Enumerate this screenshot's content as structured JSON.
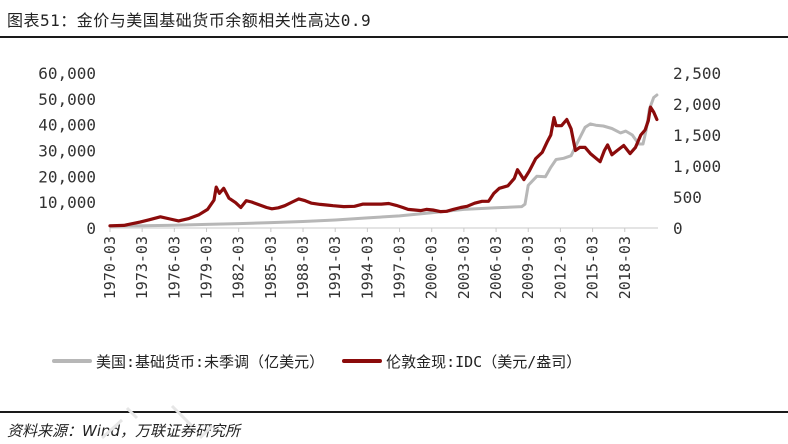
{
  "title": "图表51：金价与美国基础货币余额相关性高达0.9",
  "source": "资料来源：Wind，万联证券研究所",
  "colors": {
    "gray": "#b7b7b7",
    "red": "#8b0b0b",
    "axis": "#c9c9c9",
    "text": "#333333"
  },
  "chart_data": {
    "type": "line",
    "title": "",
    "x_ticks": [
      "1970-03",
      "1973-03",
      "1976-03",
      "1979-03",
      "1982-03",
      "1985-03",
      "1988-03",
      "1991-03",
      "1994-03",
      "1997-03",
      "2000-03",
      "2003-03",
      "2006-03",
      "2009-03",
      "2012-03",
      "2015-03",
      "2018-03"
    ],
    "y_left": {
      "min": 0,
      "max": 60000,
      "ticks": [
        0,
        10000,
        20000,
        30000,
        40000,
        50000,
        60000
      ],
      "tick_labels": [
        "0",
        "10,000",
        "20,000",
        "30,000",
        "40,000",
        "50,000",
        "60,000"
      ]
    },
    "y_right": {
      "min": 0,
      "max": 2500,
      "ticks": [
        0,
        500,
        1000,
        1500,
        2000,
        2500
      ],
      "tick_labels": [
        "0",
        "500",
        "1,000",
        "1,500",
        "2,000",
        "2,500"
      ]
    },
    "grid": false,
    "legend_position": "bottom",
    "series": [
      {
        "name": "美国:基础货币:未季调（亿美元）",
        "axis": "left",
        "color": "#b7b7b7",
        "points": [
          [
            1970.2,
            800
          ],
          [
            1973.2,
            900
          ],
          [
            1976.2,
            1100
          ],
          [
            1979.2,
            1400
          ],
          [
            1982.2,
            1700
          ],
          [
            1985.2,
            2100
          ],
          [
            1988.2,
            2500
          ],
          [
            1991.2,
            3100
          ],
          [
            1994.2,
            3900
          ],
          [
            1997.2,
            4700
          ],
          [
            2000.2,
            5900
          ],
          [
            2003.2,
            7200
          ],
          [
            2006.2,
            7800
          ],
          [
            2008.6,
            8300
          ],
          [
            2008.9,
            9200
          ],
          [
            2009.2,
            16500
          ],
          [
            2010.0,
            20000
          ],
          [
            2010.8,
            19800
          ],
          [
            2011.3,
            23500
          ],
          [
            2011.8,
            26500
          ],
          [
            2012.5,
            27000
          ],
          [
            2013.2,
            28000
          ],
          [
            2013.9,
            34000
          ],
          [
            2014.5,
            39000
          ],
          [
            2015.0,
            40300
          ],
          [
            2015.5,
            39800
          ],
          [
            2016.2,
            39500
          ],
          [
            2017.0,
            38500
          ],
          [
            2017.8,
            36800
          ],
          [
            2018.3,
            37500
          ],
          [
            2018.9,
            36000
          ],
          [
            2019.5,
            32500
          ],
          [
            2019.9,
            32500
          ],
          [
            2020.2,
            38000
          ],
          [
            2020.5,
            46000
          ],
          [
            2020.9,
            50500
          ],
          [
            2021.2,
            51500
          ]
        ]
      },
      {
        "name": "伦敦金现:IDC（美元/盎司）",
        "axis": "right",
        "color": "#8b0b0b",
        "points": [
          [
            1970.2,
            35
          ],
          [
            1971.5,
            42
          ],
          [
            1973.0,
            95
          ],
          [
            1973.8,
            130
          ],
          [
            1974.9,
            180
          ],
          [
            1975.8,
            145
          ],
          [
            1976.6,
            115
          ],
          [
            1977.5,
            150
          ],
          [
            1978.5,
            215
          ],
          [
            1979.3,
            300
          ],
          [
            1979.9,
            450
          ],
          [
            1980.1,
            660
          ],
          [
            1980.4,
            560
          ],
          [
            1980.8,
            640
          ],
          [
            1981.3,
            480
          ],
          [
            1981.9,
            410
          ],
          [
            1982.4,
            330
          ],
          [
            1982.9,
            440
          ],
          [
            1983.4,
            420
          ],
          [
            1984.0,
            380
          ],
          [
            1984.8,
            330
          ],
          [
            1985.3,
            310
          ],
          [
            1985.9,
            325
          ],
          [
            1986.5,
            360
          ],
          [
            1987.2,
            420
          ],
          [
            1987.8,
            470
          ],
          [
            1988.4,
            440
          ],
          [
            1989.0,
            400
          ],
          [
            1989.8,
            380
          ],
          [
            1990.5,
            370
          ],
          [
            1991.0,
            360
          ],
          [
            1992.0,
            345
          ],
          [
            1993.0,
            350
          ],
          [
            1993.8,
            385
          ],
          [
            1994.5,
            385
          ],
          [
            1995.5,
            385
          ],
          [
            1996.2,
            395
          ],
          [
            1996.9,
            365
          ],
          [
            1997.5,
            330
          ],
          [
            1998.0,
            300
          ],
          [
            1998.6,
            290
          ],
          [
            1999.2,
            280
          ],
          [
            1999.7,
            300
          ],
          [
            2000.3,
            290
          ],
          [
            2001.0,
            265
          ],
          [
            2001.6,
            270
          ],
          [
            2002.2,
            300
          ],
          [
            2002.9,
            330
          ],
          [
            2003.5,
            350
          ],
          [
            2004.2,
            400
          ],
          [
            2004.9,
            430
          ],
          [
            2005.5,
            430
          ],
          [
            2006.0,
            560
          ],
          [
            2006.5,
            640
          ],
          [
            2007.3,
            680
          ],
          [
            2007.9,
            800
          ],
          [
            2008.2,
            940
          ],
          [
            2008.8,
            780
          ],
          [
            2009.3,
            920
          ],
          [
            2009.9,
            1120
          ],
          [
            2010.5,
            1220
          ],
          [
            2011.0,
            1400
          ],
          [
            2011.3,
            1500
          ],
          [
            2011.6,
            1780
          ],
          [
            2011.8,
            1650
          ],
          [
            2012.3,
            1650
          ],
          [
            2012.8,
            1750
          ],
          [
            2013.2,
            1600
          ],
          [
            2013.6,
            1250
          ],
          [
            2014.0,
            1300
          ],
          [
            2014.5,
            1300
          ],
          [
            2015.0,
            1200
          ],
          [
            2015.9,
            1070
          ],
          [
            2016.3,
            1250
          ],
          [
            2016.6,
            1340
          ],
          [
            2017.0,
            1180
          ],
          [
            2017.5,
            1250
          ],
          [
            2018.1,
            1330
          ],
          [
            2018.7,
            1200
          ],
          [
            2019.2,
            1300
          ],
          [
            2019.7,
            1500
          ],
          [
            2020.1,
            1580
          ],
          [
            2020.4,
            1730
          ],
          [
            2020.6,
            1950
          ],
          [
            2020.9,
            1870
          ],
          [
            2021.2,
            1750
          ]
        ]
      }
    ]
  }
}
